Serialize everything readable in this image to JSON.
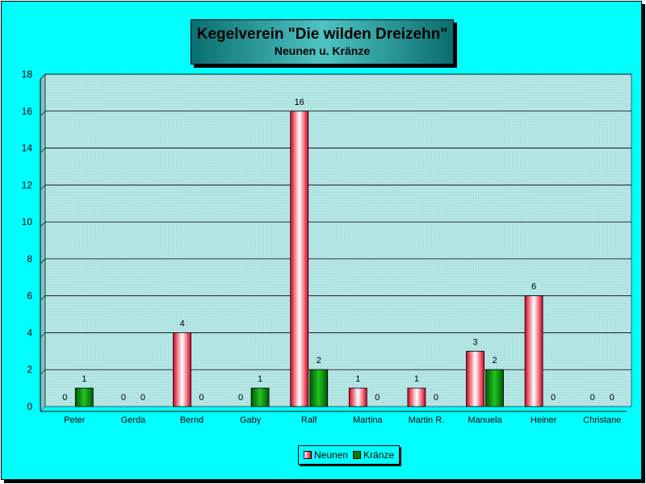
{
  "chart_data": {
    "type": "bar",
    "title": "Kegelverein \"Die wilden Dreizehn\"",
    "subtitle": "Neunen u. Kränze",
    "categories": [
      "Peter",
      "Gerda",
      "Bernd",
      "Gaby",
      "Ralf",
      "Martina",
      "Martin R.",
      "Manuela",
      "Heiner",
      "Christane"
    ],
    "series": [
      {
        "name": "Neunen",
        "values": [
          0,
          0,
          4,
          0,
          16,
          1,
          1,
          3,
          6,
          0
        ]
      },
      {
        "name": "Kränze",
        "values": [
          1,
          0,
          0,
          1,
          2,
          0,
          0,
          2,
          0,
          0
        ]
      }
    ],
    "ylim": [
      0,
      18
    ],
    "yticks": [
      0,
      2,
      4,
      6,
      8,
      10,
      12,
      14,
      16,
      18
    ],
    "grid": true,
    "legend_position": "bottom",
    "data_labels": true
  },
  "colors": {
    "background": "#00ffff",
    "plot_area": "#b4e6e6",
    "neunen": "#e8001c",
    "kraenze": "#007a00"
  }
}
